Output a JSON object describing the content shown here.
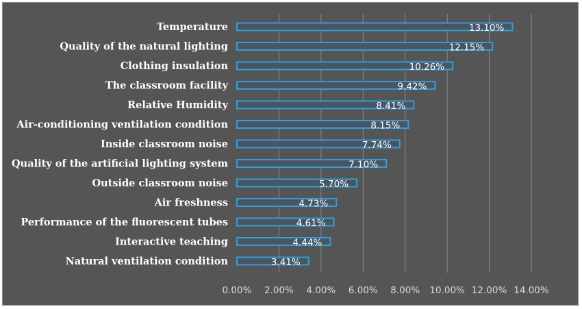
{
  "chart_data": {
    "type": "bar",
    "orientation": "horizontal",
    "categories": [
      "Temperature",
      "Quality of the natural lighting",
      "Clothing insulation",
      "The classroom facility",
      "Relative Humidity",
      "Air-conditioning ventilation  condition",
      "Inside classroom noise",
      "Quality of the artificial lighting system",
      "Outside classroom noise",
      "Air freshness",
      "Performance of the fluorescent tubes",
      "Interactive teaching",
      "Natural ventilation condition"
    ],
    "values": [
      13.1,
      12.15,
      10.26,
      9.42,
      8.41,
      8.15,
      7.74,
      7.1,
      5.7,
      4.73,
      4.61,
      4.44,
      3.41
    ],
    "data_labels": [
      "13.10%",
      "12.15%",
      "10.26%",
      "9.42%",
      "8.41%",
      "8.15%",
      "7.74%",
      "7.10%",
      "5.70%",
      "4.73%",
      "4.61%",
      "4.44%",
      "3.41%"
    ],
    "xlim": [
      0,
      14
    ],
    "xticks": [
      0,
      2,
      4,
      6,
      8,
      10,
      12,
      14
    ],
    "xtick_labels": [
      "0.00%",
      "2.00%",
      "4.00%",
      "6.00%",
      "8.00%",
      "10.00%",
      "12.00%",
      "14.00%"
    ],
    "grid": true,
    "title": "",
    "xlabel": "",
    "ylabel": "",
    "colors": {
      "background": "#555555",
      "bar_fill": "#4a5560",
      "bar_edge": "#2aa0e0",
      "grid": "#8c8c8c"
    }
  }
}
